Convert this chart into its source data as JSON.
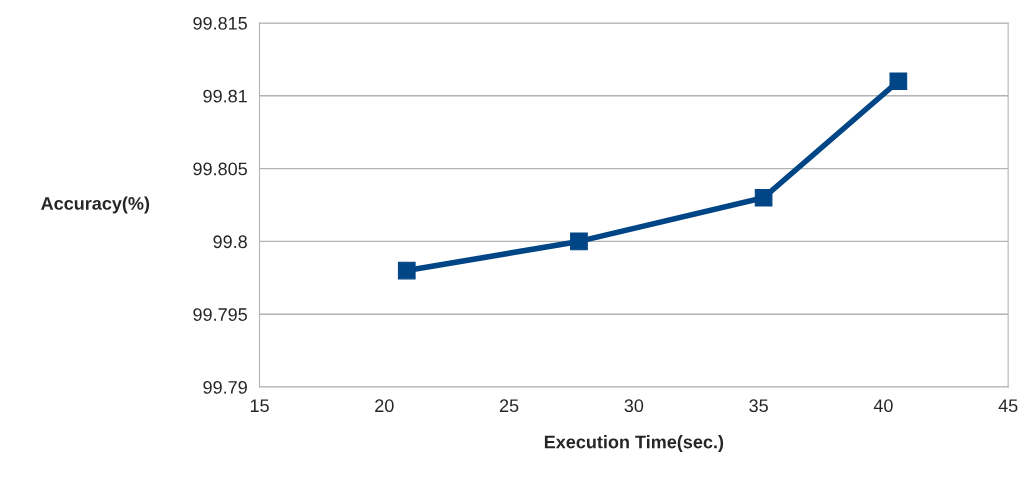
{
  "chart_data": {
    "type": "line",
    "xlabel": "Execution Time(sec.)",
    "ylabel": "Accuracy(%)",
    "x": [
      20.9,
      27.8,
      35.2,
      40.6
    ],
    "series": [
      {
        "color": "#004586",
        "values": [
          99.798,
          99.8,
          99.803,
          99.811
        ]
      }
    ],
    "xlim": [
      15,
      45
    ],
    "xticks": [
      15,
      20,
      25,
      30,
      35,
      40,
      45
    ],
    "ylim": [
      99.79,
      99.815
    ],
    "yticks": [
      99.79,
      99.795,
      99.8,
      99.805,
      99.81,
      99.815
    ],
    "grid": "y",
    "marker": "square",
    "line_style": "solid"
  }
}
